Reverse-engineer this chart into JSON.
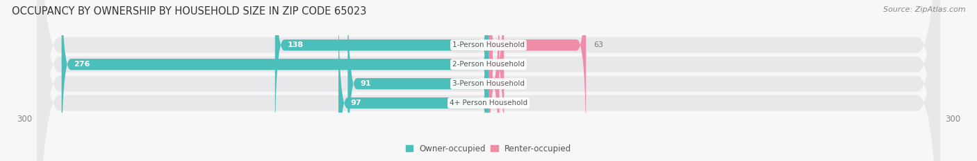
{
  "title": "OCCUPANCY BY OWNERSHIP BY HOUSEHOLD SIZE IN ZIP CODE 65023",
  "source": "Source: ZipAtlas.com",
  "categories": [
    "1-Person Household",
    "2-Person Household",
    "3-Person Household",
    "4+ Person Household"
  ],
  "owner_values": [
    138,
    276,
    91,
    97
  ],
  "renter_values": [
    63,
    10,
    7,
    0
  ],
  "owner_color": "#4dbfba",
  "renter_color": "#f08ca8",
  "axis_max": 300,
  "axis_min": -300,
  "row_bg_color": "#e8e8ea",
  "label_color": "#777777",
  "inside_label_color": "#ffffff",
  "title_color": "#333333",
  "title_fontsize": 10.5,
  "source_fontsize": 8,
  "tick_fontsize": 8.5,
  "bar_label_fontsize": 8,
  "category_fontsize": 7.5
}
